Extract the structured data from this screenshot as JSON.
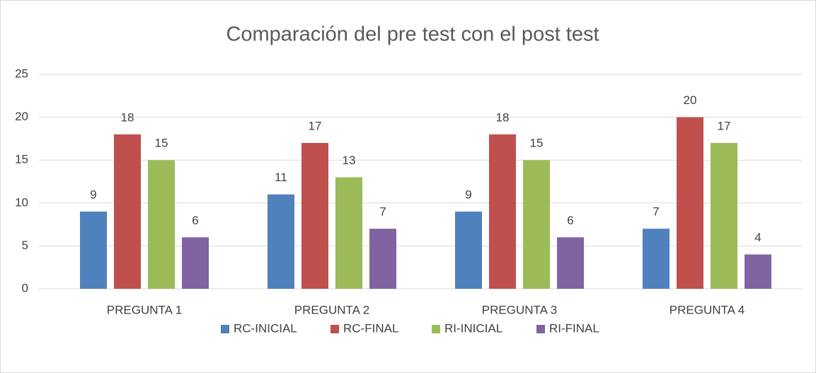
{
  "chart_data": {
    "type": "bar",
    "title": "Comparación del pre test con el post test",
    "categories": [
      "PREGUNTA 1",
      "PREGUNTA 2",
      "PREGUNTA 3",
      "PREGUNTA 4"
    ],
    "series": [
      {
        "name": "RC-INICIAL",
        "color": "#4f81bd",
        "values": [
          9,
          11,
          9,
          7
        ]
      },
      {
        "name": "RC-FINAL",
        "color": "#c0504d",
        "values": [
          18,
          17,
          18,
          20
        ]
      },
      {
        "name": "RI-INICIAL",
        "color": "#9bbb59",
        "values": [
          15,
          13,
          15,
          17
        ]
      },
      {
        "name": "RI-FINAL",
        "color": "#8064a2",
        "values": [
          6,
          7,
          6,
          4
        ]
      }
    ],
    "ylim": [
      0,
      25
    ],
    "yticks": [
      0,
      5,
      10,
      15,
      20,
      25
    ],
    "grid": true,
    "legend": "bottom"
  }
}
